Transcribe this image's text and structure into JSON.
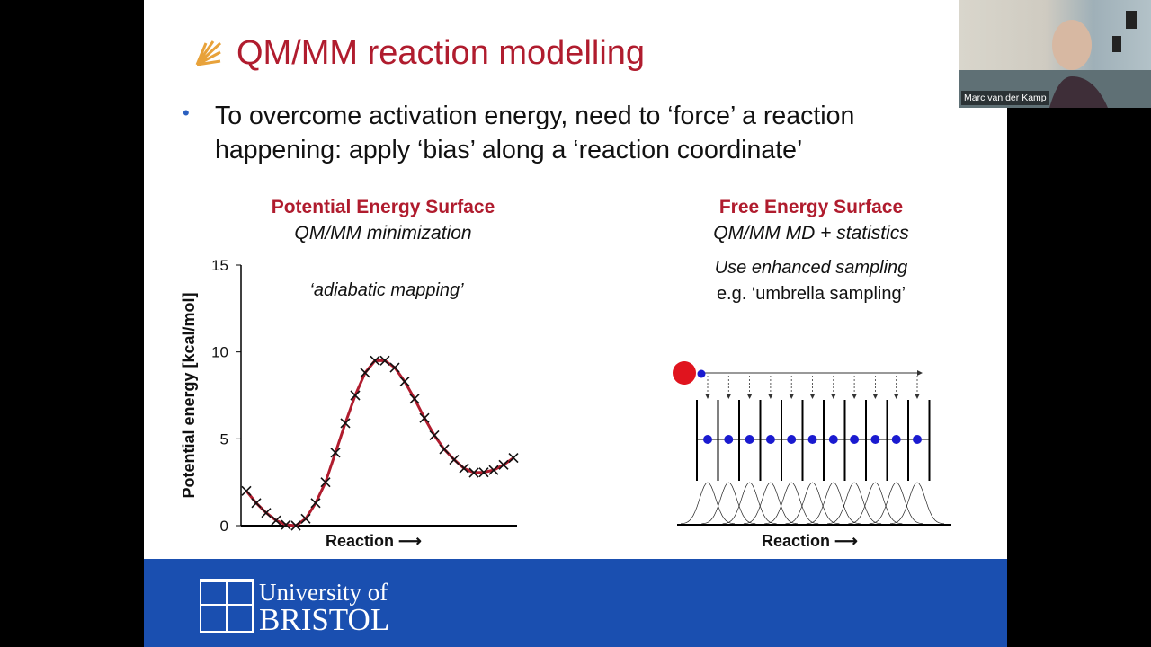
{
  "slide": {
    "title": "QM/MM reaction modelling",
    "bullet": "To overcome activation energy, need to ‘force’ a reaction happening: apply ‘bias’ along a ‘reaction coordinate’",
    "left": {
      "heading": "Potential Energy Surface",
      "subheading": "QM/MM minimization",
      "annotation": "‘adiabatic mapping’",
      "xlabel": "Reaction ⟶"
    },
    "right": {
      "heading": "Free Energy Surface",
      "subheading": "QM/MM MD + statistics",
      "line1": "Use enhanced sampling",
      "line2": "e.g. ‘umbrella sampling’",
      "xlabel": "Reaction ⟶"
    },
    "footer": {
      "line1": "University of",
      "line2": "BRISTOL"
    }
  },
  "webcam": {
    "name": "Marc van der Kamp"
  },
  "colors": {
    "title": "#b01c2e",
    "footer": "#1a4fb0",
    "curve": "#b01c2e"
  },
  "chart_data": {
    "type": "line",
    "ylabel": "Potential energy [kcal/mol]",
    "xlabel": "Reaction ⟶",
    "ylim": [
      0,
      15
    ],
    "yticks": [
      "0",
      "5",
      "10",
      "15"
    ],
    "grid": false,
    "series": [
      {
        "values": [
          2.0,
          1.3,
          0.74,
          0.3,
          0.05,
          0,
          0.4,
          1.3,
          2.5,
          4.2,
          5.9,
          7.5,
          8.8,
          9.5,
          9.5,
          9.1,
          8.3,
          7.3,
          6.2,
          5.2,
          4.4,
          3.8,
          3.3,
          3.05,
          3.07,
          3.2,
          3.5,
          3.9
        ]
      }
    ]
  }
}
